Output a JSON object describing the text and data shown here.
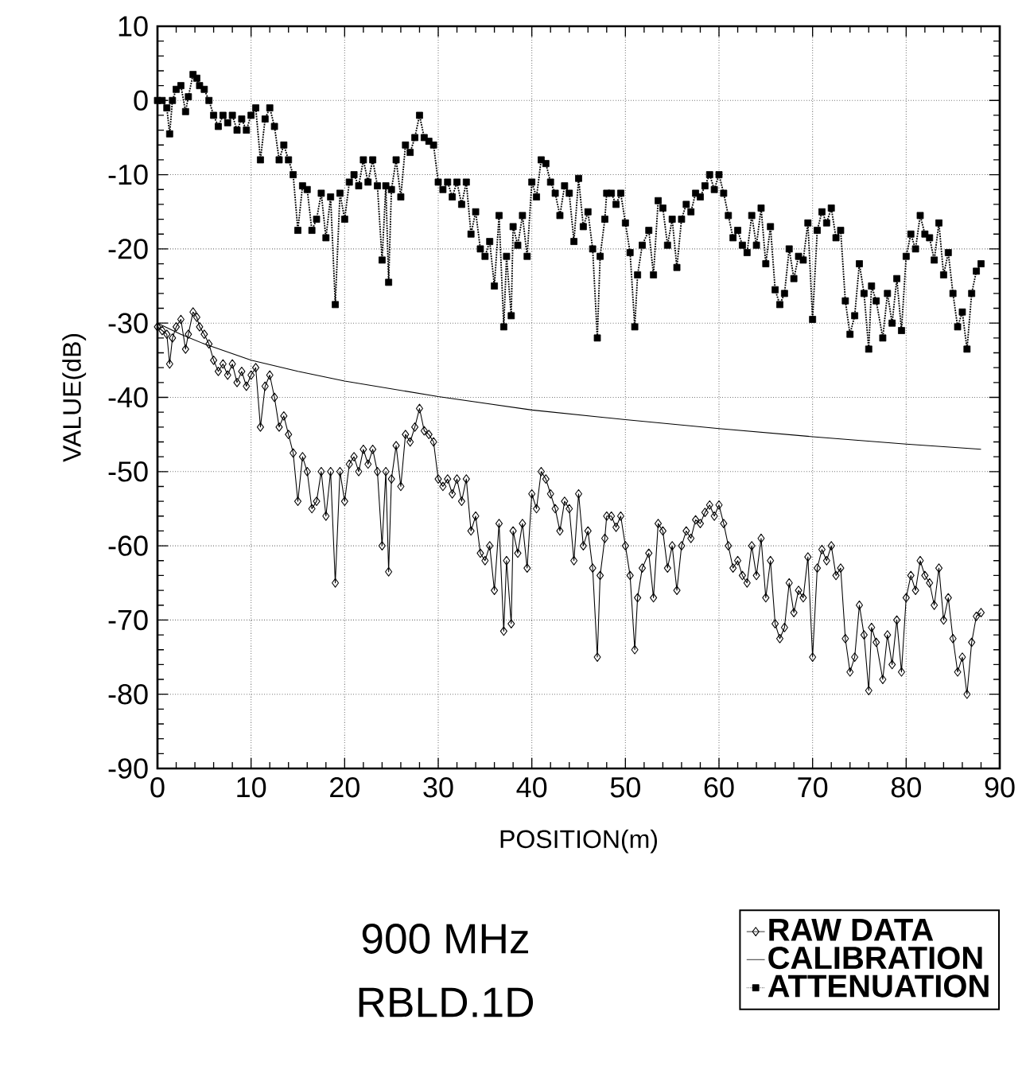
{
  "chart_data": {
    "type": "line",
    "xlabel": "POSITION(m)",
    "ylabel": "VALUE(dB)",
    "annotations": [
      "900 MHz",
      "RBLD.1D"
    ],
    "xlim": [
      0,
      90
    ],
    "ylim": [
      -90,
      10
    ],
    "xticks": [
      0,
      10,
      20,
      30,
      40,
      50,
      60,
      70,
      80,
      90
    ],
    "yticks": [
      -90,
      -80,
      -70,
      -60,
      -50,
      -40,
      -30,
      -20,
      -10,
      0,
      10
    ],
    "grid": true,
    "legend": "bottom right",
    "x": [
      0,
      0.5,
      1,
      1.3,
      1.6,
      2,
      2.5,
      3,
      3.3,
      3.8,
      4.2,
      4.5,
      5,
      5.5,
      6,
      6.5,
      7,
      7.5,
      8,
      8.5,
      9,
      9.5,
      10,
      10.5,
      11,
      11.5,
      12,
      12.5,
      13,
      13.5,
      14,
      14.5,
      15,
      15.5,
      16,
      16.5,
      17,
      17.5,
      18,
      18.5,
      19,
      19.5,
      20,
      20.5,
      21,
      21.5,
      22,
      22.5,
      23,
      23.5,
      24,
      24.4,
      24.7,
      25,
      25.5,
      26,
      26.5,
      27,
      27.5,
      28,
      28.5,
      29,
      29.5,
      30,
      30.5,
      31,
      31.5,
      32,
      32.5,
      33,
      33.5,
      34,
      34.5,
      35,
      35.5,
      36,
      36.5,
      37,
      37.3,
      37.8,
      38,
      38.5,
      39,
      39.5,
      40,
      40.5,
      41,
      41.5,
      42,
      42.5,
      43,
      43.5,
      44,
      44.5,
      45,
      45.5,
      46,
      46.5,
      47,
      47.3,
      47.8,
      48,
      48.5,
      49,
      49.5,
      50,
      50.5,
      51,
      51.3,
      51.8,
      52.5,
      53,
      53.5,
      54,
      54.5,
      55,
      55.5,
      56,
      56.5,
      57,
      57.5,
      58,
      58.5,
      59,
      59.5,
      60,
      60.5,
      61,
      61.5,
      62,
      62.5,
      63,
      63.5,
      64,
      64.5,
      65,
      65.5,
      66,
      66.5,
      67,
      67.5,
      68,
      68.5,
      69,
      69.5,
      70,
      70.5,
      71,
      71.5,
      72,
      72.5,
      73,
      73.5,
      74,
      74.5,
      75,
      75.5,
      76,
      76.3,
      76.8,
      77.5,
      78,
      78.5,
      79,
      79.5,
      80,
      80.5,
      81,
      81.5,
      82,
      82.5,
      83,
      83.5,
      84,
      84.5,
      85,
      85.5,
      86,
      86.5,
      87,
      87.5,
      88
    ],
    "series": [
      {
        "name": "RAW DATA",
        "color": "#000000",
        "marker": "diamond",
        "line_style": "solid",
        "values": [
          -30.5,
          -31,
          -31.5,
          -35.5,
          -32,
          -30.5,
          -29.5,
          -33.5,
          -31.5,
          -28.5,
          -29.2,
          -30.5,
          -31.5,
          -32.8,
          -35,
          -36.5,
          -35.5,
          -37,
          -35.5,
          -38,
          -36.5,
          -38.5,
          -37,
          -36,
          -44,
          -38.5,
          -37,
          -40,
          -44,
          -42.5,
          -45,
          -47.5,
          -54,
          -48,
          -50,
          -55,
          -54,
          -50,
          -56,
          -50,
          -65,
          -50,
          -54,
          -49,
          -48,
          -50,
          -47,
          -49,
          -47,
          -50,
          -60,
          -50,
          -63.5,
          -51,
          -46.5,
          -52,
          -45,
          -46,
          -44,
          -41.5,
          -44.5,
          -45,
          -46,
          -51,
          -52,
          -51,
          -53,
          -51,
          -54,
          -51,
          -58,
          -56,
          -61,
          -62,
          -60,
          -66,
          -57,
          -71.5,
          -62,
          -70.5,
          -58,
          -61,
          -57,
          -63,
          -53,
          -55,
          -50,
          -51,
          -53,
          -55,
          -58,
          -54,
          -55,
          -62,
          -53,
          -60,
          -58,
          -63,
          -75,
          -64,
          -59,
          -56,
          -56,
          -57.5,
          -56,
          -60,
          -64,
          -74,
          -67,
          -63,
          -61,
          -67,
          -57,
          -58,
          -63,
          -60,
          -66,
          -60,
          -58,
          -59,
          -56.5,
          -57,
          -55.5,
          -54.5,
          -56,
          -54.5,
          -57,
          -60,
          -63,
          -62,
          -64,
          -65,
          -60,
          -64,
          -59,
          -67,
          -62,
          -70.5,
          -72.5,
          -71,
          -65,
          -69,
          -66,
          -67,
          -61.5,
          -75,
          -63,
          -60.5,
          -62,
          -60,
          -64,
          -63,
          -72.5,
          -77,
          -75,
          -68,
          -72,
          -79.5,
          -71,
          -73,
          -78,
          -72,
          -76,
          -70,
          -77,
          -67,
          -64,
          -66,
          -62,
          -64,
          -65,
          -68,
          -63,
          -70,
          -67,
          -72.5,
          -77,
          -75,
          -80,
          -73,
          -69.5,
          -69
        ]
      },
      {
        "name": "CALIBRATION",
        "color": "#000000",
        "marker": "none",
        "line_style": "solid",
        "x": [
          0,
          2.5,
          5,
          10,
          15,
          20,
          30,
          40,
          50,
          60,
          70,
          80,
          88
        ],
        "values": [
          -30,
          -31.5,
          -32.8,
          -35,
          -36.5,
          -37.8,
          -39.9,
          -41.7,
          -43,
          -44.2,
          -45.3,
          -46.3,
          -47
        ]
      },
      {
        "name": "ATTENUATION",
        "color": "#000000",
        "marker": "square",
        "line_style": "dotted",
        "values": [
          0,
          0,
          -1,
          -4.5,
          0,
          1.5,
          2,
          -1.5,
          0.5,
          3.5,
          3,
          2,
          1.5,
          0,
          -2,
          -3.5,
          -2,
          -3,
          -2,
          -4,
          -2.5,
          -4,
          -2,
          -1,
          -8,
          -2.5,
          -1,
          -3.5,
          -8,
          -6,
          -8,
          -10,
          -17.5,
          -11.5,
          -12,
          -17.5,
          -16,
          -12.5,
          -18.5,
          -13,
          -27.5,
          -12.5,
          -16,
          -11,
          -10,
          -11.5,
          -8,
          -11,
          -8,
          -11.5,
          -21.5,
          -11.5,
          -24.5,
          -12,
          -8,
          -13,
          -6,
          -7,
          -5,
          -2,
          -5,
          -5.5,
          -6,
          -11,
          -12,
          -11,
          -13,
          -11,
          -14,
          -11,
          -18,
          -15,
          -20,
          -21,
          -19,
          -25,
          -15.5,
          -30.5,
          -21,
          -29,
          -17,
          -19.5,
          -15.5,
          -21,
          -11,
          -13,
          -8,
          -8.5,
          -11,
          -12.5,
          -15.5,
          -11.5,
          -12.5,
          -19,
          -10.5,
          -17,
          -15,
          -20,
          -32,
          -21,
          -16,
          -12.5,
          -12.5,
          -14,
          -12.5,
          -16.5,
          -20.5,
          -30.5,
          -23.5,
          -19.5,
          -17.5,
          -23.5,
          -13.5,
          -14.5,
          -19.5,
          -16,
          -22.5,
          -16,
          -14,
          -15,
          -12.5,
          -13,
          -11.5,
          -10,
          -12,
          -10,
          -12.5,
          -15.5,
          -18.5,
          -17.5,
          -19.5,
          -20.5,
          -15.5,
          -19.5,
          -14.5,
          -22,
          -17,
          -25.5,
          -27.5,
          -26,
          -20,
          -24,
          -21,
          -21.5,
          -16.5,
          -29.5,
          -17.5,
          -15,
          -16.5,
          -14.5,
          -18.5,
          -17.5,
          -27,
          -31.5,
          -29,
          -22,
          -26,
          -33.5,
          -25,
          -27,
          -32,
          -26,
          -30,
          -24,
          -31,
          -21,
          -18,
          -20,
          -15.5,
          -18,
          -18.5,
          -21.5,
          -16.5,
          -23.5,
          -20.5,
          -26,
          -30.5,
          -28.5,
          -33.5,
          -26,
          -23,
          -22
        ]
      }
    ]
  }
}
